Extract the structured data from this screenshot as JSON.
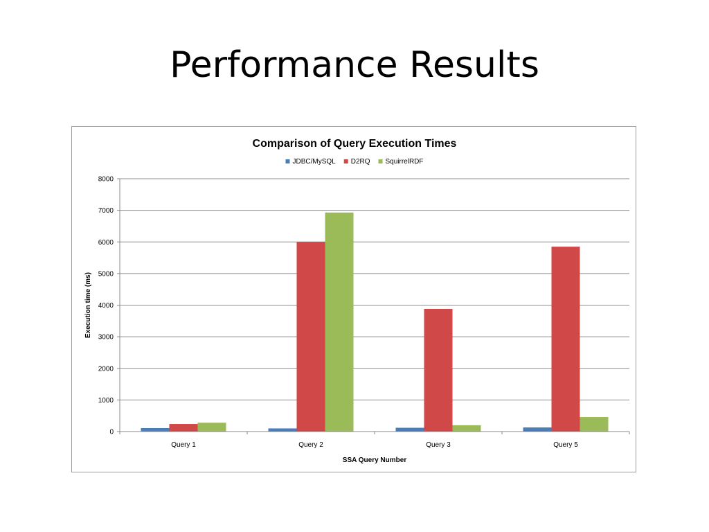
{
  "slide": {
    "title": "Performance Results"
  },
  "chart_data": {
    "type": "bar",
    "title": "Comparison of Query Execution Times",
    "xlabel": "SSA Query Number",
    "ylabel": "Execution time (ms)",
    "categories": [
      "Query 1",
      "Query 2",
      "Query 3",
      "Query 5"
    ],
    "series": [
      {
        "name": "JDBC/MySQL",
        "color": "#4a7ebb",
        "values": [
          110,
          100,
          120,
          130
        ]
      },
      {
        "name": "D2RQ",
        "color": "#d04848",
        "values": [
          240,
          6000,
          3880,
          5850
        ]
      },
      {
        "name": "SquirrelRDF",
        "color": "#9bbb59",
        "values": [
          280,
          6930,
          200,
          460
        ]
      }
    ],
    "ylim": [
      0,
      8000
    ],
    "yticks": [
      0,
      1000,
      2000,
      3000,
      4000,
      5000,
      6000,
      7000,
      8000
    ],
    "grid": true,
    "legend_position": "top"
  }
}
